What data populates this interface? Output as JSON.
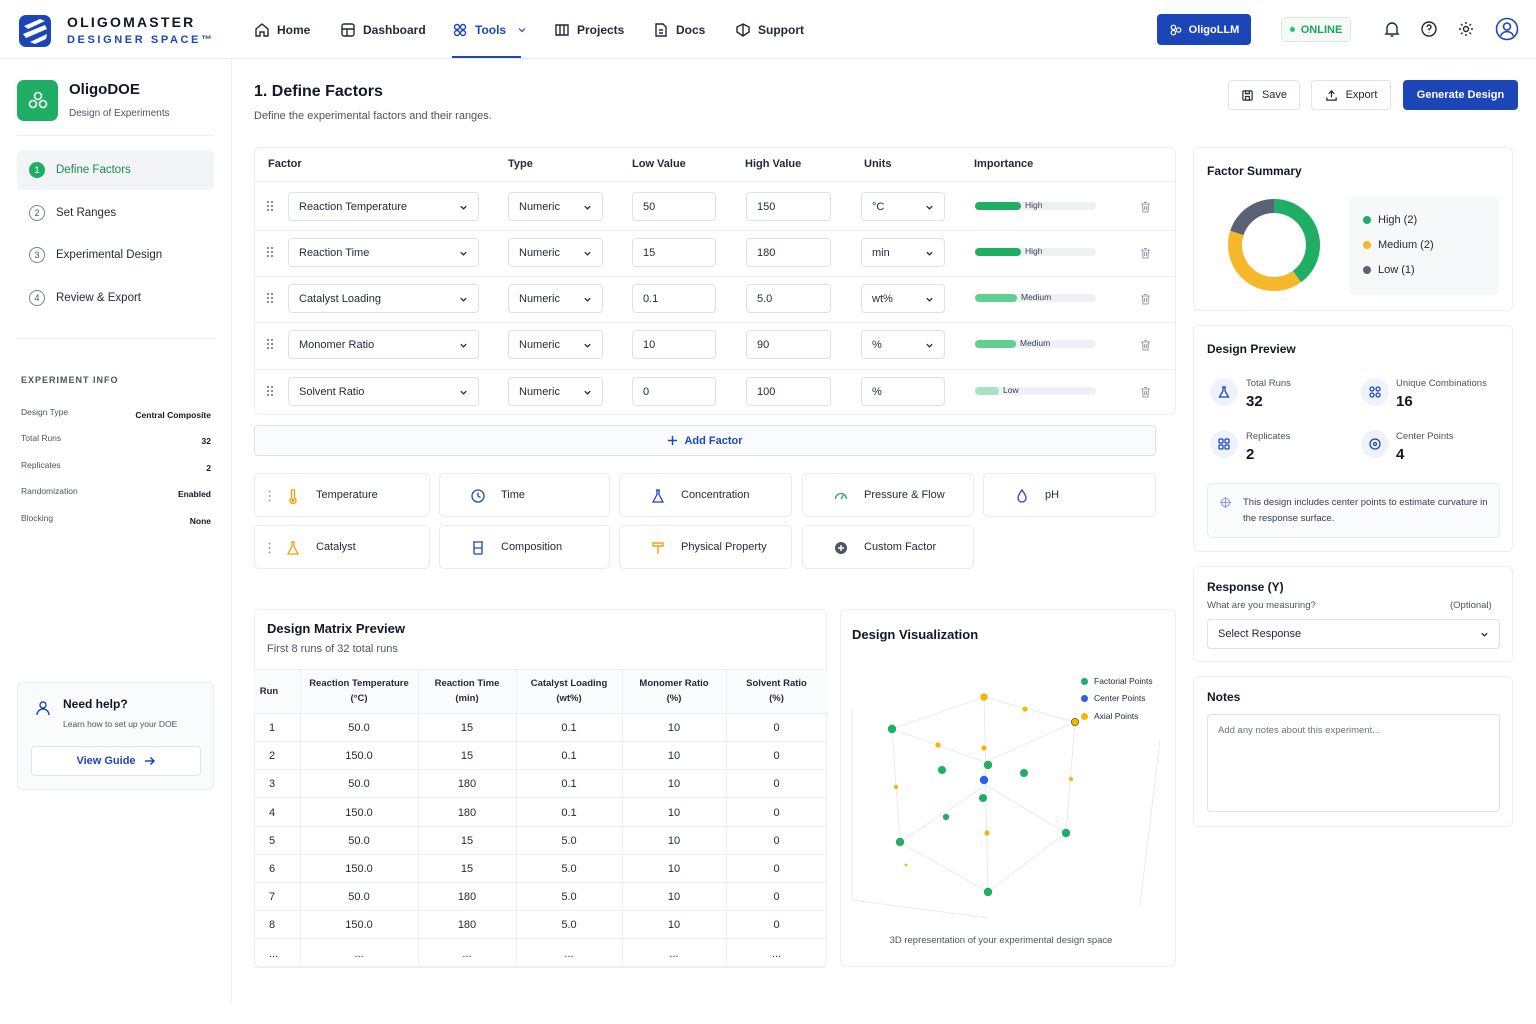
{
  "brand": {
    "name": "OLIGOMASTER",
    "tagline": "DESIGNER SPACE™"
  },
  "nav": {
    "items": [
      {
        "label": "Home",
        "icon": "home-icon"
      },
      {
        "label": "Dashboard",
        "icon": "dashboard-icon"
      },
      {
        "label": "Tools",
        "icon": "tools-icon",
        "active": true
      },
      {
        "label": "Projects",
        "icon": "projects-icon"
      },
      {
        "label": "Docs",
        "icon": "docs-icon"
      },
      {
        "label": "Support",
        "icon": "support-icon"
      }
    ],
    "llm_button": "OligoLLM",
    "status": "ONLINE",
    "accent": "#1c46b8"
  },
  "app": {
    "title": "OligoDOE",
    "subtitle": "Design of Experiments",
    "color": "#1fae63"
  },
  "steps": [
    {
      "num": "1",
      "label": "Define Factors",
      "active": true
    },
    {
      "num": "2",
      "label": "Set Ranges"
    },
    {
      "num": "3",
      "label": "Experimental Design"
    },
    {
      "num": "4",
      "label": "Review & Export"
    }
  ],
  "experiment_info": {
    "heading": "EXPERIMENT INFO",
    "rows": [
      {
        "label": "Design Type",
        "value": "Central Composite"
      },
      {
        "label": "Total Runs",
        "value": "32"
      },
      {
        "label": "Replicates",
        "value": "2"
      },
      {
        "label": "Randomization",
        "value": "Enabled"
      },
      {
        "label": "Blocking",
        "value": "None"
      }
    ]
  },
  "help": {
    "title": "Need help?",
    "subtitle": "Learn how to set up your DOE",
    "button": "View Guide"
  },
  "main": {
    "title": "1. Define Factors",
    "subtitle": "Define the experimental factors and their ranges.",
    "save": "Save",
    "export": "Export",
    "generate": "Generate Design"
  },
  "factor_table": {
    "headers": [
      "Factor",
      "Type",
      "Low Value",
      "High Value",
      "Units",
      "Importance"
    ],
    "rows": [
      {
        "factor": "Reaction Temperature",
        "type": "Numeric",
        "low": "50",
        "high": "150",
        "units": "°C",
        "importance": "High",
        "level": 0.38
      },
      {
        "factor": "Reaction Time",
        "type": "Numeric",
        "low": "15",
        "high": "180",
        "units": "min",
        "importance": "High",
        "level": 0.38
      },
      {
        "factor": "Catalyst Loading",
        "type": "Numeric",
        "low": "0.1",
        "high": "5.0",
        "units": "wt%",
        "importance": "Medium",
        "level": 0.35
      },
      {
        "factor": "Monomer Ratio",
        "type": "Numeric",
        "low": "10",
        "high": "90",
        "units": "%",
        "importance": "Medium",
        "level": 0.34
      },
      {
        "factor": "Solvent Ratio",
        "type": "Numeric",
        "low": "0",
        "high": "100",
        "units": "%",
        "importance": "Low",
        "level": 0.2
      }
    ],
    "add_label": "Add Factor"
  },
  "categories": [
    {
      "label": "Temperature",
      "icon": "thermometer-icon",
      "color": "#f59e0b"
    },
    {
      "label": "Time",
      "icon": "clock-icon",
      "color": "#1c46b8"
    },
    {
      "label": "Concentration",
      "icon": "flask-icon",
      "color": "#1c46b8"
    },
    {
      "label": "Pressure & Flow",
      "icon": "gauge-icon",
      "color": "#1fae63"
    },
    {
      "label": "pH",
      "icon": "droplet-icon",
      "color": "#1c46b8"
    },
    {
      "label": "Catalyst",
      "icon": "flask-icon",
      "color": "#f59e0b"
    },
    {
      "label": "Composition",
      "icon": "beaker-icon",
      "color": "#1c46b8"
    },
    {
      "label": "Physical Property",
      "icon": "hammer-icon",
      "color": "#f59e0b"
    },
    {
      "label": "Custom Factor",
      "icon": "plus-circle-icon",
      "color": "#4b5563"
    }
  ],
  "matrix": {
    "title": "Design Matrix Preview",
    "subtitle": "First 8 runs of 32 total runs",
    "headers": [
      {
        "l1": "Run",
        "l2": ""
      },
      {
        "l1": "Reaction Temperature",
        "l2": "(°C)"
      },
      {
        "l1": "Reaction Time",
        "l2": "(min)"
      },
      {
        "l1": "Catalyst Loading",
        "l2": "(wt%)"
      },
      {
        "l1": "Monomer Ratio",
        "l2": "(%)"
      },
      {
        "l1": "Solvent Ratio",
        "l2": "(%)"
      }
    ],
    "rows": [
      [
        "1",
        "50.0",
        "15",
        "0.1",
        "10",
        "0"
      ],
      [
        "2",
        "150.0",
        "15",
        "0.1",
        "10",
        "0"
      ],
      [
        "3",
        "50.0",
        "180",
        "0.1",
        "10",
        "0"
      ],
      [
        "4",
        "150.0",
        "180",
        "0.1",
        "10",
        "0"
      ],
      [
        "5",
        "50.0",
        "15",
        "5.0",
        "10",
        "0"
      ],
      [
        "6",
        "150.0",
        "15",
        "5.0",
        "10",
        "0"
      ],
      [
        "7",
        "50.0",
        "180",
        "5.0",
        "10",
        "0"
      ],
      [
        "8",
        "150.0",
        "180",
        "5.0",
        "10",
        "0"
      ],
      [
        "...",
        "...",
        "...",
        "...",
        "...",
        "..."
      ]
    ]
  },
  "visualization": {
    "title": "Design Visualization",
    "caption": "3D representation of your experimental design space",
    "legend": [
      {
        "label": "Factorial Points",
        "color": "#1fae63"
      },
      {
        "label": "Center Points",
        "color": "#2563eb"
      },
      {
        "label": "Axial Points",
        "color": "#f5b800"
      }
    ]
  },
  "factor_summary": {
    "title": "Factor Summary",
    "items": [
      {
        "label": "High (2)",
        "count": 2,
        "color": "#1fae63"
      },
      {
        "label": "Medium (2)",
        "count": 2,
        "color": "#f5b82a"
      },
      {
        "label": "Low (1)",
        "count": 1,
        "color": "#5b6273"
      }
    ]
  },
  "design_preview": {
    "title": "Design Preview",
    "stats": [
      {
        "label": "Total Runs",
        "value": "32",
        "icon": "flask-icon"
      },
      {
        "label": "Unique Combinations",
        "value": "16",
        "icon": "grid-icon"
      },
      {
        "label": "Replicates",
        "value": "2",
        "icon": "replicate-icon"
      },
      {
        "label": "Center Points",
        "value": "4",
        "icon": "target-icon"
      }
    ],
    "note": "This design includes center points to estimate curvature in the response surface."
  },
  "response": {
    "title": "Response (Y)",
    "question": "What are you measuring?",
    "optional": "(Optional)",
    "select": "Select Response"
  },
  "notes": {
    "title": "Notes",
    "placeholder": "Add any notes about this experiment..."
  }
}
